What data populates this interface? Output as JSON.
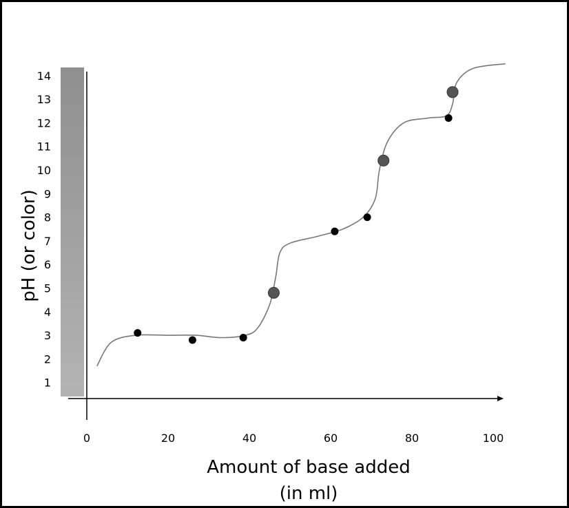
{
  "chart_data": {
    "type": "scatter",
    "title": "",
    "xlabel": "Amount of base added",
    "xlabel_line2": "(in ml)",
    "ylabel": "pH (or color)",
    "xlim": [
      0,
      103
    ],
    "ylim": [
      0,
      14
    ],
    "x_ticks": [
      "0",
      "20",
      "40",
      "60",
      "80",
      "100"
    ],
    "x_tick_values": [
      0,
      20,
      40,
      60,
      80,
      100
    ],
    "y_ticks": [
      "1",
      "2",
      "3",
      "4",
      "5",
      "6",
      "7",
      "8",
      "9",
      "10",
      "11",
      "12",
      "13",
      "14"
    ],
    "y_tick_values": [
      1,
      2,
      3,
      4,
      5,
      6,
      7,
      8,
      9,
      10,
      11,
      12,
      13,
      14
    ],
    "grid": false,
    "legend": "none",
    "color_bar": {
      "top_color": "#8f8f8f",
      "bottom_color": "#b3b3b3"
    },
    "curve": {
      "color": "#777777",
      "points": [
        {
          "x": 2.5,
          "y": 1.7
        },
        {
          "x": 6,
          "y": 2.7
        },
        {
          "x": 12,
          "y": 3.0
        },
        {
          "x": 20,
          "y": 3.0
        },
        {
          "x": 27,
          "y": 3.0
        },
        {
          "x": 33,
          "y": 2.9
        },
        {
          "x": 39,
          "y": 3.0
        },
        {
          "x": 42,
          "y": 3.3
        },
        {
          "x": 45,
          "y": 4.3
        },
        {
          "x": 46.5,
          "y": 5.5
        },
        {
          "x": 47.5,
          "y": 6.5
        },
        {
          "x": 50,
          "y": 6.9
        },
        {
          "x": 57,
          "y": 7.2
        },
        {
          "x": 63,
          "y": 7.5
        },
        {
          "x": 68,
          "y": 8.0
        },
        {
          "x": 71,
          "y": 8.8
        },
        {
          "x": 72,
          "y": 10.0
        },
        {
          "x": 74,
          "y": 11.2
        },
        {
          "x": 78,
          "y": 12.0
        },
        {
          "x": 84,
          "y": 12.2
        },
        {
          "x": 88.5,
          "y": 12.3
        },
        {
          "x": 90,
          "y": 12.8
        },
        {
          "x": 91,
          "y": 13.7
        },
        {
          "x": 95,
          "y": 14.3
        },
        {
          "x": 103,
          "y": 14.5
        }
      ]
    },
    "series": [
      {
        "marker": "small-black",
        "color": "#000000",
        "points": [
          {
            "x": 12.5,
            "y": 3.1
          },
          {
            "x": 26,
            "y": 2.8
          },
          {
            "x": 38.5,
            "y": 2.9
          },
          {
            "x": 61,
            "y": 7.4
          },
          {
            "x": 69,
            "y": 8.0
          },
          {
            "x": 89,
            "y": 12.2
          }
        ]
      },
      {
        "marker": "large-gray",
        "color": "#555555",
        "points": [
          {
            "x": 46,
            "y": 4.8
          },
          {
            "x": 73,
            "y": 10.4
          },
          {
            "x": 90,
            "y": 13.3
          }
        ]
      }
    ]
  }
}
